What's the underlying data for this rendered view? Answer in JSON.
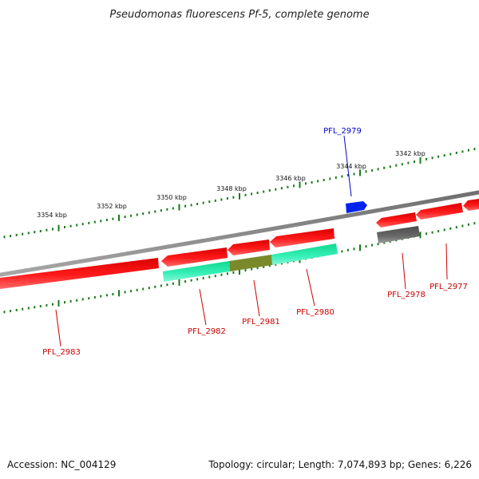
{
  "title": "Pseudomonas fluorescens Pf-5, complete genome",
  "footer": {
    "accession": "Accession: NC_004129",
    "summary": "Topology: circular; Length: 7,074,893 bp; Genes: 6,226"
  },
  "ticks": [
    "3342 kbp",
    "3344 kbp",
    "3346 kbp",
    "3348 kbp",
    "3350 kbp",
    "3352 kbp",
    "3354 kbp"
  ],
  "genes": [
    {
      "name": "PFL_2977",
      "color": "#cc0000"
    },
    {
      "name": "PFL_2978",
      "color": "#cc0000"
    },
    {
      "name": "PFL_2979",
      "color": "#0000cc"
    },
    {
      "name": "PFL_2980",
      "color": "#cc0000"
    },
    {
      "name": "PFL_2981",
      "color": "#cc0000"
    },
    {
      "name": "PFL_2982",
      "color": "#cc0000"
    },
    {
      "name": "PFL_2983",
      "color": "#cc0000"
    }
  ],
  "colors": {
    "backbone": "#808080",
    "gene_red": "#ee1111",
    "gene_blue": "#0022ee",
    "feature_cyan": "#22eeaa",
    "feature_olive": "#7a8a2a",
    "feature_gray": "#606060",
    "ruler_green": "#1a7a1a"
  }
}
